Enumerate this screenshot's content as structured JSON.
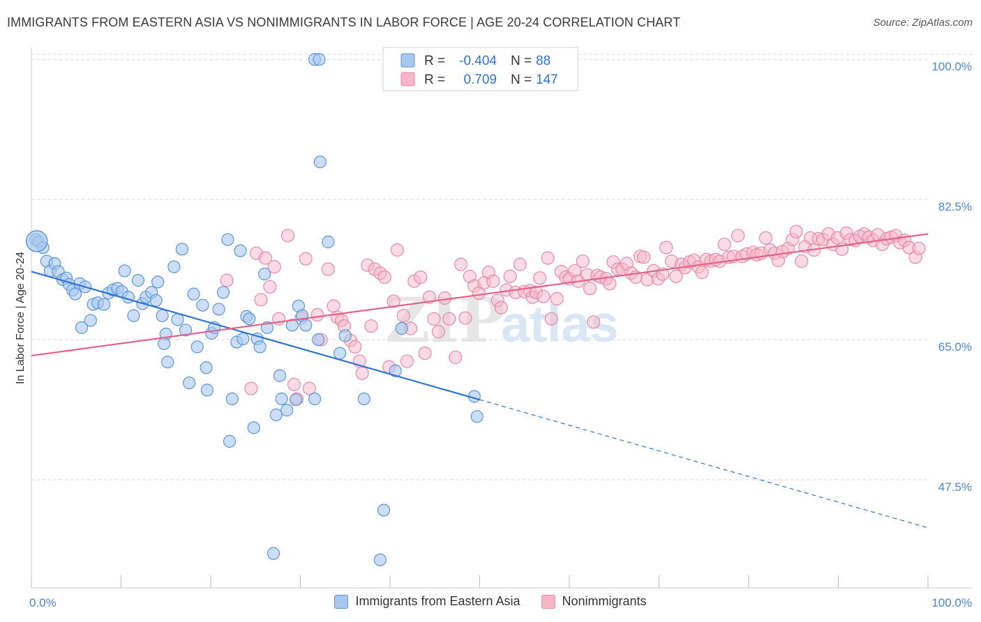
{
  "title": "IMMIGRANTS FROM EASTERN ASIA VS NONIMMIGRANTS IN LABOR FORCE | AGE 20-24 CORRELATION CHART",
  "source": "Source: ZipAtlas.com",
  "watermark": {
    "part1": "ZIP",
    "part2": "atlas"
  },
  "colors": {
    "blue_fill": "#a9c8f0",
    "blue_stroke": "#5b95d9",
    "blue_line": "#2f74d0",
    "pink_fill": "#f5b6c9",
    "pink_stroke": "#e68aa8",
    "pink_line": "#e0648c",
    "tick_label": "#4a86d6",
    "grid": "#d5d5d5"
  },
  "legend_top": {
    "rows": [
      {
        "r_label": "R =",
        "r_value": "-0.404",
        "n_label": "N =",
        "n_value": "88"
      },
      {
        "r_label": "R =",
        "r_value": "0.709",
        "n_label": "N =",
        "n_value": "147"
      }
    ]
  },
  "chart_data": {
    "type": "scatter",
    "title": "IMMIGRANTS FROM EASTERN ASIA VS NONIMMIGRANTS IN LABOR FORCE | AGE 20-24 CORRELATION CHART",
    "xlabel": "",
    "ylabel": "In Labor Force | Age 20-24",
    "xlim": [
      0,
      100
    ],
    "ylim": [
      34,
      101.5
    ],
    "x_tick_labels": [
      "0.0%",
      "100.0%"
    ],
    "y_ticks": [
      47.5,
      65.0,
      82.5,
      100.0
    ],
    "y_tick_labels": [
      "47.5%",
      "65.0%",
      "82.5%",
      "100.0%"
    ],
    "grid": true,
    "legend_position": "top-center",
    "series": [
      {
        "name": "Immigrants from Eastern Asia",
        "color": "blue",
        "r": -0.404,
        "n": 88,
        "trend": {
          "x0": 0,
          "y0": 73.5,
          "x1": 50,
          "y1": 57.5,
          "dashed_to_x": 100,
          "dashed_to_y": 41.5
        },
        "points": [
          [
            0.5,
            77.5
          ],
          [
            0.8,
            77.2
          ],
          [
            1.3,
            76.5
          ],
          [
            1.7,
            74.8
          ],
          [
            2.1,
            73.6
          ],
          [
            2.6,
            74.5
          ],
          [
            3.0,
            73.5
          ],
          [
            3.5,
            72.5
          ],
          [
            3.9,
            72.7
          ],
          [
            4.2,
            71.9
          ],
          [
            4.6,
            71.2
          ],
          [
            4.9,
            70.7
          ],
          [
            5.4,
            72.0
          ],
          [
            6.0,
            71.6
          ],
          [
            5.6,
            66.5
          ],
          [
            6.6,
            67.4
          ],
          [
            6.9,
            69.4
          ],
          [
            7.4,
            69.6
          ],
          [
            8.1,
            69.4
          ],
          [
            8.6,
            70.8
          ],
          [
            9.1,
            71.2
          ],
          [
            9.6,
            71.4
          ],
          [
            10.1,
            71.0
          ],
          [
            10.4,
            73.6
          ],
          [
            10.8,
            70.3
          ],
          [
            11.4,
            68.0
          ],
          [
            11.9,
            72.4
          ],
          [
            12.4,
            69.5
          ],
          [
            12.8,
            70.3
          ],
          [
            13.4,
            70.9
          ],
          [
            13.9,
            69.9
          ],
          [
            14.1,
            72.2
          ],
          [
            14.6,
            68.0
          ],
          [
            15.0,
            65.7
          ],
          [
            15.2,
            62.2
          ],
          [
            15.9,
            74.1
          ],
          [
            16.3,
            67.5
          ],
          [
            16.8,
            76.3
          ],
          [
            17.2,
            66.2
          ],
          [
            17.6,
            59.6
          ],
          [
            18.1,
            70.7
          ],
          [
            18.5,
            64.1
          ],
          [
            19.1,
            69.3
          ],
          [
            19.6,
            58.7
          ],
          [
            20.1,
            65.8
          ],
          [
            20.4,
            66.5
          ],
          [
            20.9,
            68.8
          ],
          [
            21.4,
            70.9
          ],
          [
            21.9,
            77.5
          ],
          [
            22.1,
            52.3
          ],
          [
            22.4,
            57.6
          ],
          [
            22.9,
            64.7
          ],
          [
            23.3,
            76.1
          ],
          [
            23.6,
            65.1
          ],
          [
            24.0,
            67.9
          ],
          [
            24.3,
            67.6
          ],
          [
            24.8,
            54.0
          ],
          [
            25.2,
            65.1
          ],
          [
            25.5,
            64.1
          ],
          [
            26.0,
            73.2
          ],
          [
            26.3,
            66.5
          ],
          [
            27.3,
            55.6
          ],
          [
            27.7,
            60.5
          ],
          [
            27.9,
            57.6
          ],
          [
            28.5,
            56.2
          ],
          [
            29.1,
            66.8
          ],
          [
            29.5,
            57.5
          ],
          [
            29.8,
            69.2
          ],
          [
            30.2,
            68.0
          ],
          [
            30.6,
            66.8
          ],
          [
            31.6,
            57.6
          ],
          [
            31.6,
            100.0
          ],
          [
            32.1,
            100.0
          ],
          [
            32.2,
            87.2
          ],
          [
            33.1,
            77.2
          ],
          [
            34.4,
            63.3
          ],
          [
            37.1,
            57.6
          ],
          [
            39.3,
            43.7
          ],
          [
            40.6,
            61.1
          ],
          [
            41.3,
            66.4
          ],
          [
            49.4,
            57.9
          ],
          [
            49.7,
            55.4
          ],
          [
            27.0,
            38.3
          ],
          [
            38.9,
            37.5
          ],
          [
            35.0,
            65.5
          ],
          [
            19.5,
            61.5
          ],
          [
            32.0,
            65.0
          ],
          [
            14.8,
            64.5
          ]
        ],
        "large_points": [
          [
            0.6,
            77.3
          ]
        ]
      },
      {
        "name": "Nonimmigrants",
        "color": "pink",
        "r": 0.709,
        "n": 147,
        "trend": {
          "x0": 0,
          "y0": 63.0,
          "x1": 100,
          "y1": 78.2
        },
        "points": [
          [
            21.8,
            72.4
          ],
          [
            24.5,
            58.9
          ],
          [
            25.1,
            75.8
          ],
          [
            25.6,
            70.0
          ],
          [
            26.1,
            75.2
          ],
          [
            26.6,
            71.6
          ],
          [
            27.1,
            74.1
          ],
          [
            27.6,
            67.6
          ],
          [
            28.6,
            78.0
          ],
          [
            29.3,
            59.4
          ],
          [
            29.6,
            57.6
          ],
          [
            30.1,
            67.7
          ],
          [
            30.6,
            75.1
          ],
          [
            31.0,
            58.9
          ],
          [
            31.9,
            68.1
          ],
          [
            32.3,
            65.0
          ],
          [
            33.1,
            73.8
          ],
          [
            33.7,
            69.2
          ],
          [
            34.1,
            67.8
          ],
          [
            34.6,
            67.4
          ],
          [
            34.9,
            66.7
          ],
          [
            35.6,
            64.9
          ],
          [
            36.1,
            64.1
          ],
          [
            36.6,
            62.3
          ],
          [
            36.9,
            60.8
          ],
          [
            37.5,
            74.3
          ],
          [
            37.9,
            66.7
          ],
          [
            38.3,
            73.8
          ],
          [
            38.9,
            73.3
          ],
          [
            39.4,
            72.8
          ],
          [
            39.9,
            61.6
          ],
          [
            40.4,
            69.8
          ],
          [
            40.8,
            76.2
          ],
          [
            41.5,
            68.0
          ],
          [
            41.9,
            62.3
          ],
          [
            42.3,
            66.4
          ],
          [
            42.7,
            72.3
          ],
          [
            43.4,
            72.8
          ],
          [
            43.9,
            63.3
          ],
          [
            44.4,
            70.3
          ],
          [
            44.9,
            67.6
          ],
          [
            45.4,
            66.0
          ],
          [
            46.1,
            70.2
          ],
          [
            46.6,
            67.6
          ],
          [
            47.3,
            62.8
          ],
          [
            47.9,
            74.4
          ],
          [
            48.4,
            67.7
          ],
          [
            48.9,
            72.9
          ],
          [
            49.4,
            71.7
          ],
          [
            49.9,
            70.8
          ],
          [
            50.5,
            72.1
          ],
          [
            51.0,
            73.4
          ],
          [
            51.5,
            72.3
          ],
          [
            52.0,
            69.9
          ],
          [
            52.4,
            69.0
          ],
          [
            53.0,
            71.2
          ],
          [
            53.4,
            72.9
          ],
          [
            54.0,
            70.9
          ],
          [
            54.5,
            74.4
          ],
          [
            55.0,
            71.0
          ],
          [
            55.6,
            71.1
          ],
          [
            55.9,
            70.3
          ],
          [
            56.3,
            70.9
          ],
          [
            56.7,
            72.7
          ],
          [
            57.1,
            70.4
          ],
          [
            57.6,
            75.2
          ],
          [
            58.0,
            67.6
          ],
          [
            58.6,
            70.1
          ],
          [
            59.1,
            73.5
          ],
          [
            59.6,
            72.8
          ],
          [
            60.0,
            72.6
          ],
          [
            60.6,
            73.6
          ],
          [
            61.0,
            72.3
          ],
          [
            61.5,
            74.8
          ],
          [
            62.0,
            73.1
          ],
          [
            62.3,
            71.4
          ],
          [
            62.7,
            67.2
          ],
          [
            63.1,
            73.0
          ],
          [
            63.5,
            72.8
          ],
          [
            64.1,
            72.6
          ],
          [
            64.5,
            72.0
          ],
          [
            64.9,
            74.7
          ],
          [
            65.4,
            73.8
          ],
          [
            65.9,
            73.8
          ],
          [
            66.4,
            74.5
          ],
          [
            66.9,
            73.3
          ],
          [
            67.4,
            72.8
          ],
          [
            67.9,
            75.4
          ],
          [
            68.3,
            75.3
          ],
          [
            68.7,
            72.5
          ],
          [
            69.4,
            73.6
          ],
          [
            69.9,
            72.6
          ],
          [
            70.4,
            73.2
          ],
          [
            70.8,
            76.5
          ],
          [
            71.4,
            74.8
          ],
          [
            71.9,
            72.9
          ],
          [
            72.5,
            74.4
          ],
          [
            72.9,
            74.0
          ],
          [
            73.4,
            74.7
          ],
          [
            73.9,
            74.9
          ],
          [
            74.4,
            74.1
          ],
          [
            74.8,
            73.4
          ],
          [
            75.3,
            75.0
          ],
          [
            75.8,
            74.8
          ],
          [
            76.3,
            75.0
          ],
          [
            76.8,
            74.8
          ],
          [
            77.3,
            76.9
          ],
          [
            77.8,
            75.3
          ],
          [
            78.3,
            75.4
          ],
          [
            78.8,
            78.0
          ],
          [
            79.3,
            75.4
          ],
          [
            79.8,
            75.7
          ],
          [
            80.5,
            75.9
          ],
          [
            80.9,
            75.6
          ],
          [
            81.4,
            75.8
          ],
          [
            81.9,
            77.7
          ],
          [
            82.4,
            76.2
          ],
          [
            82.9,
            75.8
          ],
          [
            83.3,
            74.9
          ],
          [
            83.8,
            76.0
          ],
          [
            84.4,
            76.4
          ],
          [
            84.9,
            77.5
          ],
          [
            85.3,
            78.5
          ],
          [
            85.9,
            74.8
          ],
          [
            86.3,
            76.6
          ],
          [
            86.9,
            77.7
          ],
          [
            87.3,
            76.2
          ],
          [
            87.8,
            77.6
          ],
          [
            88.3,
            77.5
          ],
          [
            88.9,
            78.2
          ],
          [
            89.4,
            76.9
          ],
          [
            89.9,
            77.7
          ],
          [
            90.4,
            76.3
          ],
          [
            90.9,
            78.3
          ],
          [
            91.4,
            77.5
          ],
          [
            91.9,
            77.4
          ],
          [
            92.4,
            77.9
          ],
          [
            92.9,
            78.2
          ],
          [
            93.4,
            77.8
          ],
          [
            93.9,
            77.4
          ],
          [
            94.4,
            78.1
          ],
          [
            94.9,
            76.9
          ],
          [
            95.4,
            77.6
          ],
          [
            95.9,
            77.8
          ],
          [
            96.4,
            78.0
          ],
          [
            96.9,
            77.1
          ],
          [
            97.4,
            77.4
          ],
          [
            97.9,
            76.5
          ],
          [
            98.6,
            75.3
          ],
          [
            99.0,
            76.4
          ]
        ]
      }
    ]
  },
  "legend_bottom": {
    "items": [
      {
        "label": "Immigrants from Eastern Asia"
      },
      {
        "label": "Nonimmigrants"
      }
    ]
  }
}
